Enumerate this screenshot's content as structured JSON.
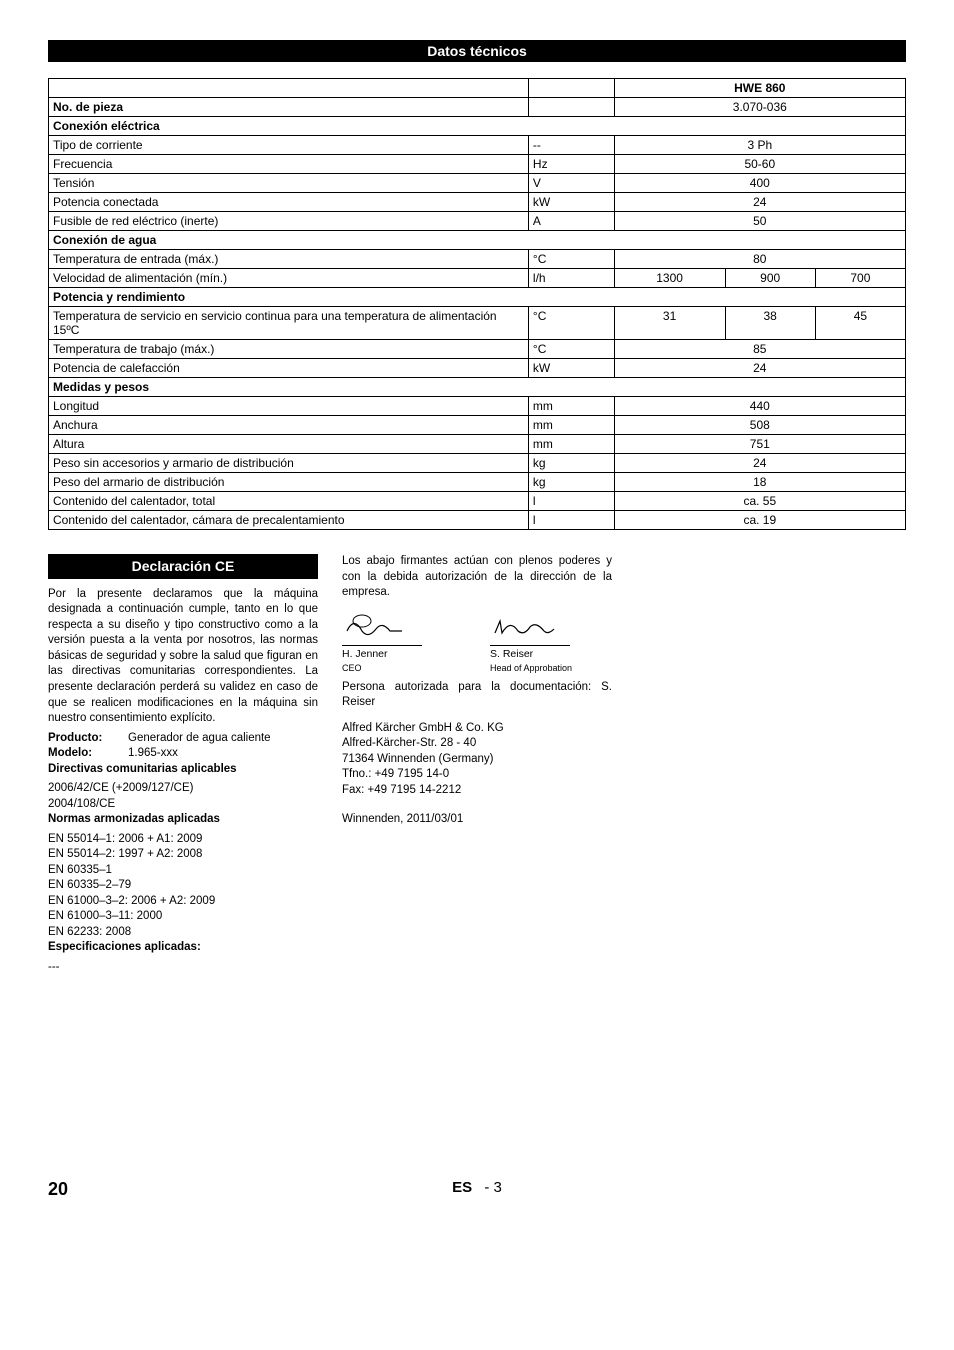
{
  "headers": {
    "main": "Datos técnicos",
    "declaration": "Declaración CE"
  },
  "product_col_header": "HWE 860",
  "table": {
    "col_param_width": "56%",
    "col_unit_width": "10%",
    "rows": [
      {
        "type": "row",
        "cells": [
          {
            "text": "No. de pieza",
            "bold": true
          },
          {
            "text": ""
          },
          {
            "text": "3.070-036",
            "colspan": 3,
            "center": true
          }
        ]
      },
      {
        "type": "section",
        "text": "Conexión eléctrica"
      },
      {
        "type": "row",
        "cells": [
          {
            "text": "Tipo de corriente"
          },
          {
            "text": "--"
          },
          {
            "text": "3 Ph",
            "colspan": 3,
            "center": true
          }
        ]
      },
      {
        "type": "row",
        "cells": [
          {
            "text": "Frecuencia"
          },
          {
            "text": "Hz"
          },
          {
            "text": "50-60",
            "colspan": 3,
            "center": true
          }
        ]
      },
      {
        "type": "row",
        "cells": [
          {
            "text": "Tensión"
          },
          {
            "text": "V"
          },
          {
            "text": "400",
            "colspan": 3,
            "center": true
          }
        ]
      },
      {
        "type": "row",
        "cells": [
          {
            "text": "Potencia conectada"
          },
          {
            "text": "kW"
          },
          {
            "text": "24",
            "colspan": 3,
            "center": true
          }
        ]
      },
      {
        "type": "row",
        "cells": [
          {
            "text": "Fusible de red eléctrico (inerte)"
          },
          {
            "text": "A"
          },
          {
            "text": "50",
            "colspan": 3,
            "center": true
          }
        ]
      },
      {
        "type": "section",
        "text": "Conexión de agua"
      },
      {
        "type": "row",
        "cells": [
          {
            "text": "Temperatura de entrada (máx.)"
          },
          {
            "text": "°C"
          },
          {
            "text": "80",
            "colspan": 3,
            "center": true
          }
        ]
      },
      {
        "type": "row",
        "cells": [
          {
            "text": "Velocidad de alimentación (mín.)"
          },
          {
            "text": "l/h"
          },
          {
            "text": "1300",
            "center": true
          },
          {
            "text": "900",
            "center": true
          },
          {
            "text": "700",
            "center": true
          }
        ]
      },
      {
        "type": "section",
        "text": "Potencia y rendimiento"
      },
      {
        "type": "row",
        "cells": [
          {
            "text": "Temperatura de servicio en servicio continua para una temperatura de alimentación 15ºC"
          },
          {
            "text": "°C"
          },
          {
            "text": "31",
            "center": true
          },
          {
            "text": "38",
            "center": true
          },
          {
            "text": "45",
            "center": true
          }
        ]
      },
      {
        "type": "row",
        "cells": [
          {
            "text": "Temperatura de trabajo (máx.)"
          },
          {
            "text": "°C"
          },
          {
            "text": "85",
            "colspan": 3,
            "center": true
          }
        ]
      },
      {
        "type": "row",
        "cells": [
          {
            "text": "Potencia de calefacción"
          },
          {
            "text": "kW"
          },
          {
            "text": "24",
            "colspan": 3,
            "center": true
          }
        ]
      },
      {
        "type": "section",
        "text": "Medidas y pesos"
      },
      {
        "type": "row",
        "cells": [
          {
            "text": "Longitud"
          },
          {
            "text": "mm"
          },
          {
            "text": "440",
            "colspan": 3,
            "center": true
          }
        ]
      },
      {
        "type": "row",
        "cells": [
          {
            "text": "Anchura"
          },
          {
            "text": "mm"
          },
          {
            "text": "508",
            "colspan": 3,
            "center": true
          }
        ]
      },
      {
        "type": "row",
        "cells": [
          {
            "text": "Altura"
          },
          {
            "text": "mm"
          },
          {
            "text": "751",
            "colspan": 3,
            "center": true
          }
        ]
      },
      {
        "type": "row",
        "cells": [
          {
            "text": "Peso sin accesorios y armario de distribución"
          },
          {
            "text": "kg"
          },
          {
            "text": "24",
            "colspan": 3,
            "center": true
          }
        ]
      },
      {
        "type": "row",
        "cells": [
          {
            "text": "Peso del armario de distribución"
          },
          {
            "text": "kg"
          },
          {
            "text": "18",
            "colspan": 3,
            "center": true
          }
        ]
      },
      {
        "type": "row",
        "cells": [
          {
            "text": "Contenido del calentador, total"
          },
          {
            "text": "l"
          },
          {
            "text": "ca. 55",
            "colspan": 3,
            "center": true
          }
        ]
      },
      {
        "type": "row",
        "cells": [
          {
            "text": "Contenido del calentador, cámara de precalentamiento"
          },
          {
            "text": "l"
          },
          {
            "text": "ca. 19",
            "colspan": 3,
            "center": true
          }
        ]
      }
    ]
  },
  "declaration": {
    "intro": "Por la presente declaramos que la máquina designada a continuación cumple, tanto en lo que respecta a su diseño y tipo constructivo como a la versión puesta a la venta por nosotros, las normas básicas de seguridad y sobre la salud que figuran en las directivas comunitarias correspondientes. La presente declaración perderá su validez en caso de que se realicen modificaciones en la máquina sin nuestro consentimiento explícito.",
    "product_label": "Producto:",
    "product_value": "Generador de agua caliente",
    "model_label": "Modelo:",
    "model_value": "1.965-xxx",
    "directives_h": "Directivas comunitarias aplicables",
    "directives": [
      "2006/42/CE (+2009/127/CE)",
      "2004/108/CE"
    ],
    "norms_h": "Normas armonizadas aplicadas",
    "norms": [
      "EN 55014–1: 2006 + A1: 2009",
      "EN 55014–2: 1997 + A2: 2008",
      "EN 60335–1",
      "EN 60335–2–79",
      "EN 61000–3–2: 2006 + A2: 2009",
      "EN 61000–3–11: 2000",
      "EN 62233: 2008"
    ],
    "specs_h": "Especificaciones aplicadas:",
    "specs_value": "---"
  },
  "col2": {
    "p1": "Los abajo firmantes actúan con plenos poderes y con la debida autorización de la dirección de la empresa.",
    "sig1_name": "H. Jenner",
    "sig1_title": "CEO",
    "sig2_name": "S. Reiser",
    "sig2_title": "Head of Approbation",
    "auth": "Persona autorizada para la documentación: S. Reiser",
    "addr": [
      "Alfred Kärcher GmbH & Co. KG",
      "Alfred-Kärcher-Str. 28 - 40",
      "71364 Winnenden (Germany)",
      "Tfno.: +49 7195 14-0",
      "Fax: +49 7195 14-2212"
    ],
    "date": "Winnenden, 2011/03/01"
  },
  "footer": {
    "page": "20",
    "lang": "ES",
    "sub": "- 3"
  }
}
